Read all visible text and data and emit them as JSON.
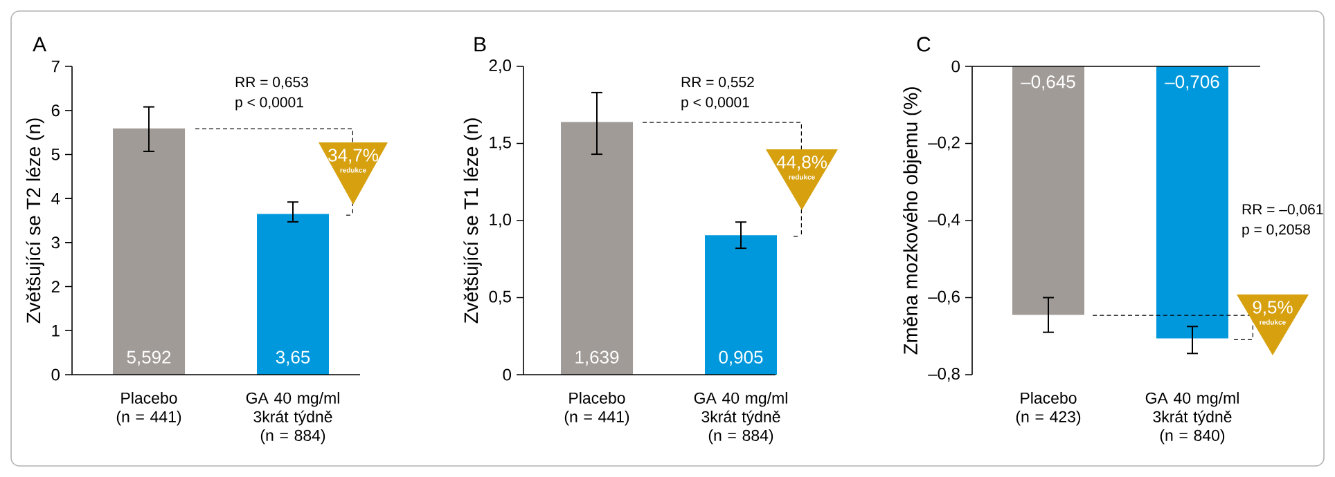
{
  "chart_data": [
    {
      "type": "bar",
      "title": "A",
      "ylabel": "Zvětšující se T2 léze (n)",
      "categories": [
        "Placebo (n = 441)",
        "GA 40 mg/ml 3krát týdně (n = 884)"
      ],
      "values": [
        5.592,
        3.65
      ],
      "colors": [
        "#a09b97",
        "#0098dc"
      ],
      "errors": [
        [
          5.07,
          6.08
        ],
        [
          3.47,
          3.92
        ]
      ],
      "value_labels": [
        "5,592",
        "3,65"
      ],
      "ylim": [
        0,
        7
      ],
      "yticks": [
        0,
        1,
        2,
        3,
        4,
        5,
        6,
        7
      ],
      "annotations": [
        "RR = 0,653",
        "p < 0,0001",
        "34,7%",
        "redukce"
      ]
    },
    {
      "type": "bar",
      "title": "B",
      "ylabel": "Zvětšující se T1 léze (n)",
      "categories": [
        "Placebo (n = 441)",
        "GA 40 mg/ml 3krát týdně (n = 884)"
      ],
      "values": [
        1.639,
        0.905
      ],
      "colors": [
        "#a09b97",
        "#0098dc"
      ],
      "errors": [
        [
          1.43,
          1.83
        ],
        [
          0.82,
          0.99
        ]
      ],
      "value_labels": [
        "1,639",
        "0,905"
      ],
      "ylim": [
        0,
        2
      ],
      "yticks": [
        0,
        {
          "value": 0.5,
          "label": "0,5"
        },
        {
          "value": 1,
          "label": "1,0"
        },
        {
          "value": 1.5,
          "label": "1,5"
        },
        {
          "value": 2,
          "label": "2,0"
        }
      ],
      "annotations": [
        "RR = 0,552",
        "p < 0,0001",
        "44,8%",
        "redukce"
      ]
    },
    {
      "type": "bar",
      "title": "C",
      "ylabel": "Změna mozkového objemu (%)",
      "categories": [
        "Placebo (n = 423)",
        "GA 40 mg/ml 3krát týdně (n = 840)"
      ],
      "values": [
        -0.645,
        -0.706
      ],
      "colors": [
        "#a09b97",
        "#0098dc"
      ],
      "errors": [
        [
          -0.69,
          -0.6
        ],
        [
          -0.745,
          -0.675
        ]
      ],
      "value_labels": [
        "–0,645",
        "–0,706"
      ],
      "ylim": [
        -0.8,
        0
      ],
      "yticks": [
        {
          "value": -0.8,
          "label": "–0,8"
        },
        {
          "value": -0.6,
          "label": "–0,6"
        },
        {
          "value": -0.4,
          "label": "–0,4"
        },
        {
          "value": -0.2,
          "label": "–0,2"
        },
        0
      ],
      "annotations": [
        "RR = –0,061",
        "p = 0,2058",
        "9,5%",
        "redukce"
      ]
    }
  ]
}
